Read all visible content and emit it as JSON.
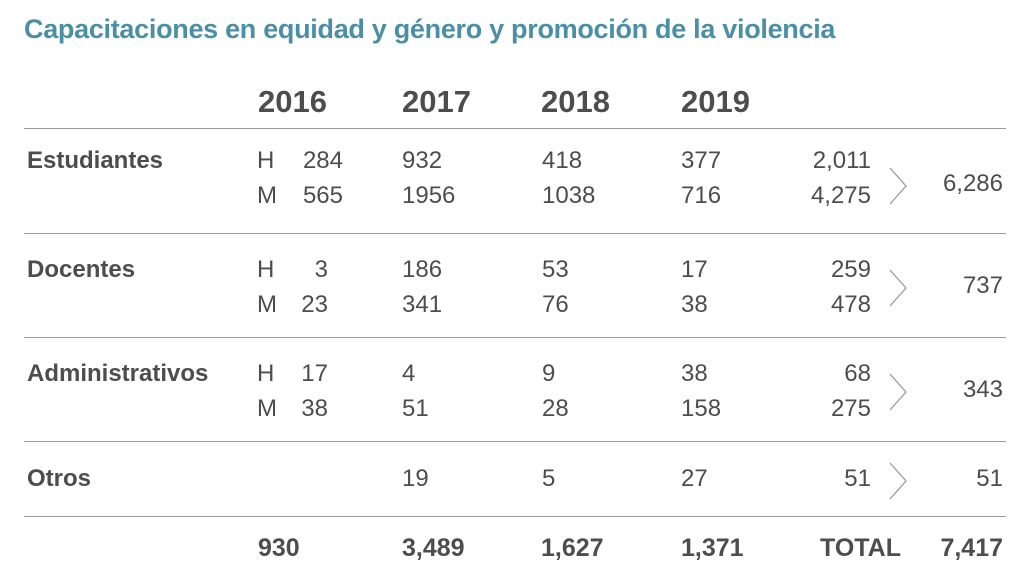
{
  "title": "Capacitaciones en equidad y género y promoción de la violencia",
  "years": [
    "2016",
    "2017",
    "2018",
    "2019"
  ],
  "rows": {
    "estudiantes": {
      "label": "Estudiantes",
      "h": {
        "sex": "H",
        "y2016": "284",
        "y2017": "932",
        "y2018": "418",
        "y2019": "377",
        "subtotal": "2,011"
      },
      "m": {
        "sex": "M",
        "y2016": "565",
        "y2017": "1956",
        "y2018": "1038",
        "y2019": "716",
        "subtotal": "4,275"
      },
      "total": "6,286"
    },
    "docentes": {
      "label": "Docentes",
      "h": {
        "sex": "H",
        "y2016": "3",
        "y2017": "186",
        "y2018": "53",
        "y2019": "17",
        "subtotal": "259"
      },
      "m": {
        "sex": "M",
        "y2016": "23",
        "y2017": "341",
        "y2018": "76",
        "y2019": "38",
        "subtotal": "478"
      },
      "total": "737"
    },
    "administrativos": {
      "label": "Administrativos",
      "h": {
        "sex": "H",
        "y2016": "17",
        "y2017": "4",
        "y2018": "9",
        "y2019": "38",
        "subtotal": "68"
      },
      "m": {
        "sex": "M",
        "y2016": "38",
        "y2017": "51",
        "y2018": "28",
        "y2019": "158",
        "subtotal": "275"
      },
      "total": "343"
    },
    "otros": {
      "label": "Otros",
      "y2017": "19",
      "y2018": "5",
      "y2019": "27",
      "subtotal": "51",
      "total": "51"
    }
  },
  "footer": {
    "y2016": "930",
    "y2017": "3,489",
    "y2018": "1,627",
    "y2019": "1,371",
    "total_label": "TOTAL",
    "grand_total": "7,417"
  },
  "colors": {
    "title": "#4a8fa5",
    "text": "#4d4d4d",
    "rule": "#9a9a9a"
  }
}
